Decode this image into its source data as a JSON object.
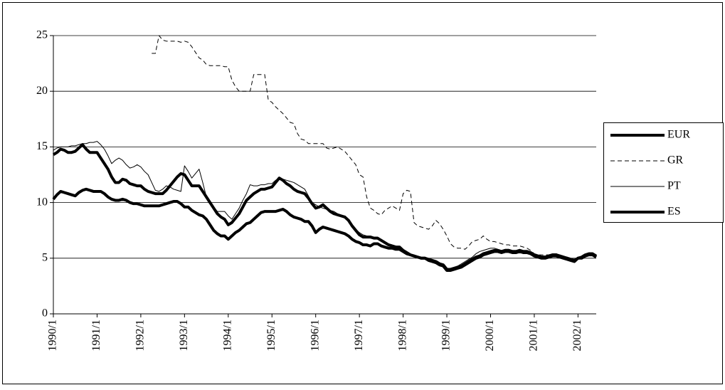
{
  "chart_data": {
    "type": "line",
    "grid": true,
    "legend": "right",
    "categories": [
      "1990/1",
      null,
      null,
      null,
      null,
      null,
      null,
      null,
      null,
      null,
      null,
      null,
      "1991/1",
      null,
      null,
      null,
      null,
      null,
      null,
      null,
      null,
      null,
      null,
      null,
      "1992/1",
      null,
      null,
      null,
      null,
      null,
      null,
      null,
      null,
      null,
      null,
      null,
      "1993/1",
      null,
      null,
      null,
      null,
      null,
      null,
      null,
      null,
      null,
      null,
      null,
      "1994/1",
      null,
      null,
      null,
      null,
      null,
      null,
      null,
      null,
      null,
      null,
      null,
      "1995/1",
      null,
      null,
      null,
      null,
      null,
      null,
      null,
      null,
      null,
      null,
      null,
      "1996/1",
      null,
      null,
      null,
      null,
      null,
      null,
      null,
      null,
      null,
      null,
      null,
      "1997/1",
      null,
      null,
      null,
      null,
      null,
      null,
      null,
      null,
      null,
      null,
      null,
      "1998/1",
      null,
      null,
      null,
      null,
      null,
      null,
      null,
      null,
      null,
      null,
      null,
      "1999/1",
      null,
      null,
      null,
      null,
      null,
      null,
      null,
      null,
      null,
      null,
      null,
      "2000/1",
      null,
      null,
      null,
      null,
      null,
      null,
      null,
      null,
      null,
      null,
      null,
      "2001/1",
      null,
      null,
      null,
      null,
      null,
      null,
      null,
      null,
      null,
      null,
      null,
      "2002/1",
      null,
      null,
      null,
      null,
      null
    ],
    "ylim": [
      0,
      25
    ],
    "yticks": [
      0,
      5,
      10,
      15,
      20,
      25
    ],
    "series": [
      {
        "name": "EUR",
        "color": "#000000",
        "width": 4,
        "dashed": false,
        "values": [
          10.3,
          10.7,
          11.0,
          10.9,
          10.8,
          10.7,
          10.6,
          10.9,
          11.1,
          11.2,
          11.1,
          11.0,
          11.0,
          11.0,
          10.8,
          10.5,
          10.3,
          10.2,
          10.2,
          10.3,
          10.2,
          10.0,
          9.9,
          9.9,
          9.8,
          9.7,
          9.7,
          9.7,
          9.7,
          9.7,
          9.8,
          9.9,
          10.0,
          10.1,
          10.1,
          9.9,
          9.6,
          9.6,
          9.3,
          9.1,
          8.9,
          8.8,
          8.5,
          8.0,
          7.5,
          7.2,
          7.0,
          7.0,
          6.7,
          7.0,
          7.3,
          7.5,
          7.8,
          8.1,
          8.2,
          8.5,
          8.8,
          9.1,
          9.2,
          9.2,
          9.2,
          9.2,
          9.3,
          9.4,
          9.2,
          8.9,
          8.7,
          8.6,
          8.5,
          8.3,
          8.3,
          7.9,
          7.3,
          7.6,
          7.8,
          7.7,
          7.6,
          7.5,
          7.4,
          7.3,
          7.2,
          7.0,
          6.7,
          6.5,
          6.4,
          6.2,
          6.2,
          6.1,
          6.3,
          6.3,
          6.1,
          6.0,
          5.9,
          5.9,
          5.8,
          5.8,
          5.6,
          5.4,
          5.3,
          5.2,
          5.1,
          5.0,
          5.0,
          4.8,
          4.7,
          4.6,
          4.4,
          4.3,
          3.9,
          3.9,
          4.0,
          4.1,
          4.2,
          4.4,
          4.6,
          4.8,
          5.0,
          5.1,
          5.3,
          5.4,
          5.5,
          5.6,
          5.6,
          5.5,
          5.6,
          5.6,
          5.5,
          5.5,
          5.6,
          5.5,
          5.5,
          5.4,
          5.2,
          5.1,
          5.0,
          5.0,
          5.1,
          5.2,
          5.2,
          5.1,
          5.0,
          4.9,
          4.8,
          4.7,
          5.0,
          5.0,
          5.2,
          5.3,
          5.3,
          5.1
        ]
      },
      {
        "name": "GR",
        "color": "#000000",
        "width": 1,
        "dashed": true,
        "values": [
          null,
          null,
          null,
          null,
          null,
          null,
          null,
          null,
          null,
          null,
          null,
          null,
          null,
          null,
          null,
          null,
          null,
          null,
          null,
          null,
          null,
          null,
          null,
          null,
          null,
          null,
          null,
          23.4,
          23.4,
          25.0,
          24.6,
          24.5,
          24.5,
          24.5,
          24.5,
          24.4,
          24.5,
          24.4,
          24.0,
          23.5,
          23.0,
          22.8,
          22.4,
          22.3,
          22.3,
          22.3,
          22.3,
          22.2,
          22.2,
          21.0,
          20.4,
          20.0,
          20.0,
          20.0,
          20.0,
          21.5,
          21.5,
          21.5,
          21.5,
          19.2,
          19.0,
          18.6,
          18.3,
          18.0,
          17.6,
          17.2,
          17.1,
          16.2,
          15.7,
          15.6,
          15.3,
          15.3,
          15.3,
          15.3,
          15.3,
          14.9,
          14.8,
          14.9,
          15.0,
          14.8,
          14.6,
          14.2,
          13.8,
          13.4,
          12.5,
          12.3,
          10.5,
          9.5,
          9.3,
          9.0,
          8.9,
          9.3,
          9.5,
          9.7,
          9.5,
          9.3,
          10.8,
          11.1,
          11.0,
          8.2,
          7.9,
          7.8,
          7.7,
          7.6,
          7.9,
          8.4,
          8.1,
          7.6,
          7.0,
          6.3,
          6.0,
          5.9,
          5.9,
          5.8,
          6.1,
          6.5,
          6.6,
          6.7,
          7.0,
          6.7,
          6.5,
          6.5,
          6.4,
          6.3,
          6.2,
          6.2,
          6.1,
          6.1,
          6.1,
          6.0,
          5.9,
          5.7,
          5.4,
          5.3,
          5.3,
          5.3,
          5.3,
          5.4,
          5.4,
          5.3,
          5.2,
          5.1,
          5.0,
          4.9,
          5.1,
          5.1,
          5.3,
          5.4,
          5.4,
          5.2
        ]
      },
      {
        "name": "PT",
        "color": "#000000",
        "width": 1,
        "dashed": false,
        "values": [
          14.7,
          14.9,
          15.0,
          15.0,
          15.0,
          15.1,
          15.1,
          15.2,
          15.3,
          15.3,
          15.4,
          15.4,
          15.5,
          15.2,
          14.8,
          14.2,
          13.5,
          13.8,
          14.0,
          13.8,
          13.4,
          13.1,
          13.2,
          13.4,
          13.2,
          12.8,
          12.5,
          11.8,
          11.1,
          11.0,
          11.2,
          11.5,
          11.4,
          11.2,
          11.1,
          11.0,
          13.3,
          12.8,
          12.2,
          12.6,
          13.0,
          11.8,
          10.5,
          10.0,
          9.6,
          9.2,
          9.2,
          9.2,
          8.8,
          8.5,
          9.0,
          9.5,
          10.2,
          10.8,
          11.6,
          11.5,
          11.5,
          11.6,
          11.6,
          11.7,
          11.7,
          12.0,
          12.2,
          12.1,
          12.0,
          11.9,
          11.8,
          11.6,
          11.4,
          11.2,
          10.6,
          10.0,
          9.8,
          9.6,
          9.5,
          9.4,
          9.3,
          9.2,
          9.0,
          8.8,
          8.6,
          8.3,
          7.9,
          7.6,
          7.3,
          7.1,
          7.0,
          7.0,
          6.9,
          6.9,
          6.7,
          6.5,
          6.3,
          6.2,
          6.1,
          6.0,
          5.8,
          5.5,
          5.3,
          5.2,
          5.1,
          5.0,
          5.0,
          4.9,
          4.8,
          4.7,
          4.5,
          4.4,
          4.0,
          4.0,
          4.1,
          4.3,
          4.5,
          4.7,
          4.9,
          5.1,
          5.4,
          5.6,
          5.7,
          5.8,
          5.9,
          5.9,
          5.8,
          5.7,
          5.8,
          5.8,
          5.7,
          5.7,
          5.8,
          5.7,
          5.7,
          5.6,
          5.4,
          5.3,
          5.2,
          5.2,
          5.3,
          5.4,
          5.4,
          5.3,
          5.2,
          5.1,
          5.0,
          4.9,
          5.1,
          5.1,
          5.3,
          5.4,
          5.4,
          5.2
        ]
      },
      {
        "name": "ES",
        "color": "#000000",
        "width": 4,
        "dashed": false,
        "values": [
          14.3,
          14.5,
          14.8,
          14.7,
          14.5,
          14.5,
          14.6,
          14.9,
          15.2,
          14.8,
          14.5,
          14.5,
          14.5,
          14.0,
          13.5,
          13.0,
          12.3,
          11.8,
          11.8,
          12.1,
          12.0,
          11.7,
          11.6,
          11.5,
          11.5,
          11.2,
          11.0,
          10.9,
          10.8,
          10.8,
          10.8,
          11.1,
          11.5,
          11.9,
          12.3,
          12.6,
          12.5,
          12.0,
          11.5,
          11.5,
          11.5,
          11.0,
          10.5,
          10.0,
          9.5,
          9.0,
          8.7,
          8.5,
          8.0,
          8.2,
          8.6,
          9.0,
          9.6,
          10.2,
          10.5,
          10.8,
          11.0,
          11.2,
          11.2,
          11.3,
          11.4,
          11.8,
          12.2,
          12.0,
          11.7,
          11.5,
          11.2,
          11.0,
          10.9,
          10.8,
          10.4,
          9.9,
          9.5,
          9.6,
          9.8,
          9.5,
          9.2,
          9.0,
          8.9,
          8.8,
          8.7,
          8.4,
          7.9,
          7.5,
          7.1,
          6.9,
          6.9,
          6.9,
          6.8,
          6.8,
          6.6,
          6.4,
          6.2,
          6.1,
          6.0,
          6.0,
          5.7,
          5.5,
          5.3,
          5.2,
          5.1,
          5.0,
          5.0,
          4.9,
          4.8,
          4.7,
          4.5,
          4.4,
          4.0,
          4.0,
          4.1,
          4.2,
          4.3,
          4.5,
          4.7,
          4.9,
          5.1,
          5.2,
          5.4,
          5.5,
          5.6,
          5.7,
          5.7,
          5.6,
          5.7,
          5.7,
          5.6,
          5.6,
          5.7,
          5.6,
          5.6,
          5.5,
          5.3,
          5.2,
          5.1,
          5.1,
          5.2,
          5.3,
          5.3,
          5.2,
          5.1,
          5.0,
          4.9,
          4.8,
          5.0,
          5.1,
          5.3,
          5.4,
          5.4,
          5.2
        ]
      }
    ]
  }
}
